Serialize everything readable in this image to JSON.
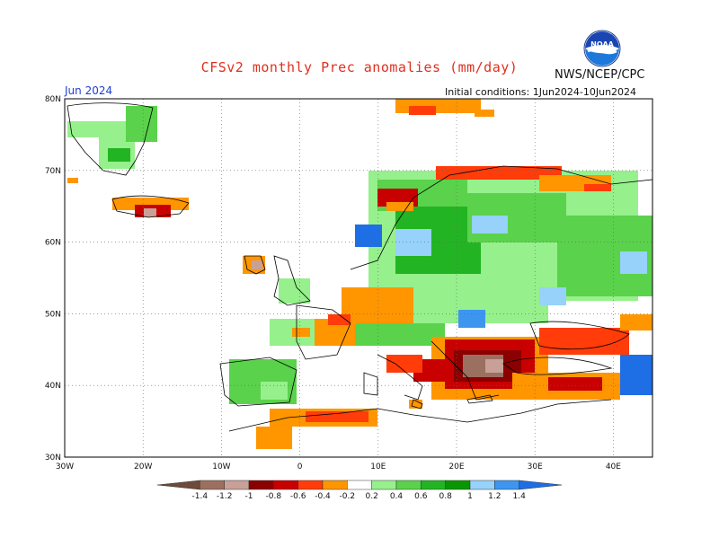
{
  "header": {
    "title": "CFSv2 monthly Prec anomalies (mm/day)",
    "agency": "NWS/NCEP/CPC",
    "logo_text": "NOAA",
    "month": "Jun 2024",
    "initial_conditions": "Initial conditions: 1Jun2024-10Jun2024"
  },
  "axes": {
    "lat_labels": [
      "30N",
      "40N",
      "50N",
      "60N",
      "70N",
      "80N"
    ],
    "lat_values": [
      30,
      40,
      50,
      60,
      70,
      80
    ],
    "lon_labels": [
      "30W",
      "20W",
      "10W",
      "0",
      "10E",
      "20E",
      "30E",
      "40E"
    ],
    "lon_values": [
      -30,
      -20,
      -10,
      0,
      10,
      20,
      30,
      40
    ],
    "lon_range": [
      -30,
      45
    ],
    "lat_range": [
      30,
      80
    ],
    "grid": "dotted"
  },
  "colorbar": {
    "labels": [
      "-1.4",
      "-1.2",
      "-1",
      "-0.8",
      "-0.6",
      "-0.4",
      "-0.2",
      "0.2",
      "0.4",
      "0.6",
      "0.8",
      "1",
      "1.2",
      "1.4"
    ],
    "colors": [
      "#6e4a3a",
      "#9c7060",
      "#c8a098",
      "#8b0000",
      "#c80000",
      "#ff3c0a",
      "#ff9600",
      "#ffffff",
      "#96f08c",
      "#5ad24b",
      "#23b423",
      "#0a9600",
      "#96d2fa",
      "#3c96f0",
      "#1e6ee6"
    ]
  }
}
